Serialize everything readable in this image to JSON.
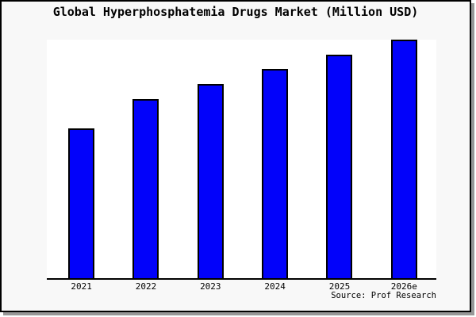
{
  "chart_data": {
    "type": "bar",
    "title": "Global Hyperphosphatemia Drugs Market (Million USD)",
    "categories": [
      "2021",
      "2022",
      "2023",
      "2024",
      "2025",
      "2026e"
    ],
    "values": [
      62.8,
      75.1,
      81.4,
      87.7,
      93.7,
      100.0
    ],
    "values_note": "relative bar heights in percent of tallest bar; no y-axis scale or gridlines shown in chart",
    "xlabel": "",
    "ylabel": "",
    "ylim": [
      0,
      100
    ],
    "grid": false,
    "legend": false,
    "source_note": "Source: Prof Research"
  },
  "colors": {
    "bar_fill": "#0202fa",
    "bar_border": "#000000",
    "plot_background": "#ffffff",
    "frame_background": "#f8f8f8",
    "frame_border": "#000000",
    "frame_shadow": "#979797",
    "axis_line": "#000000",
    "text": "#000000"
  }
}
